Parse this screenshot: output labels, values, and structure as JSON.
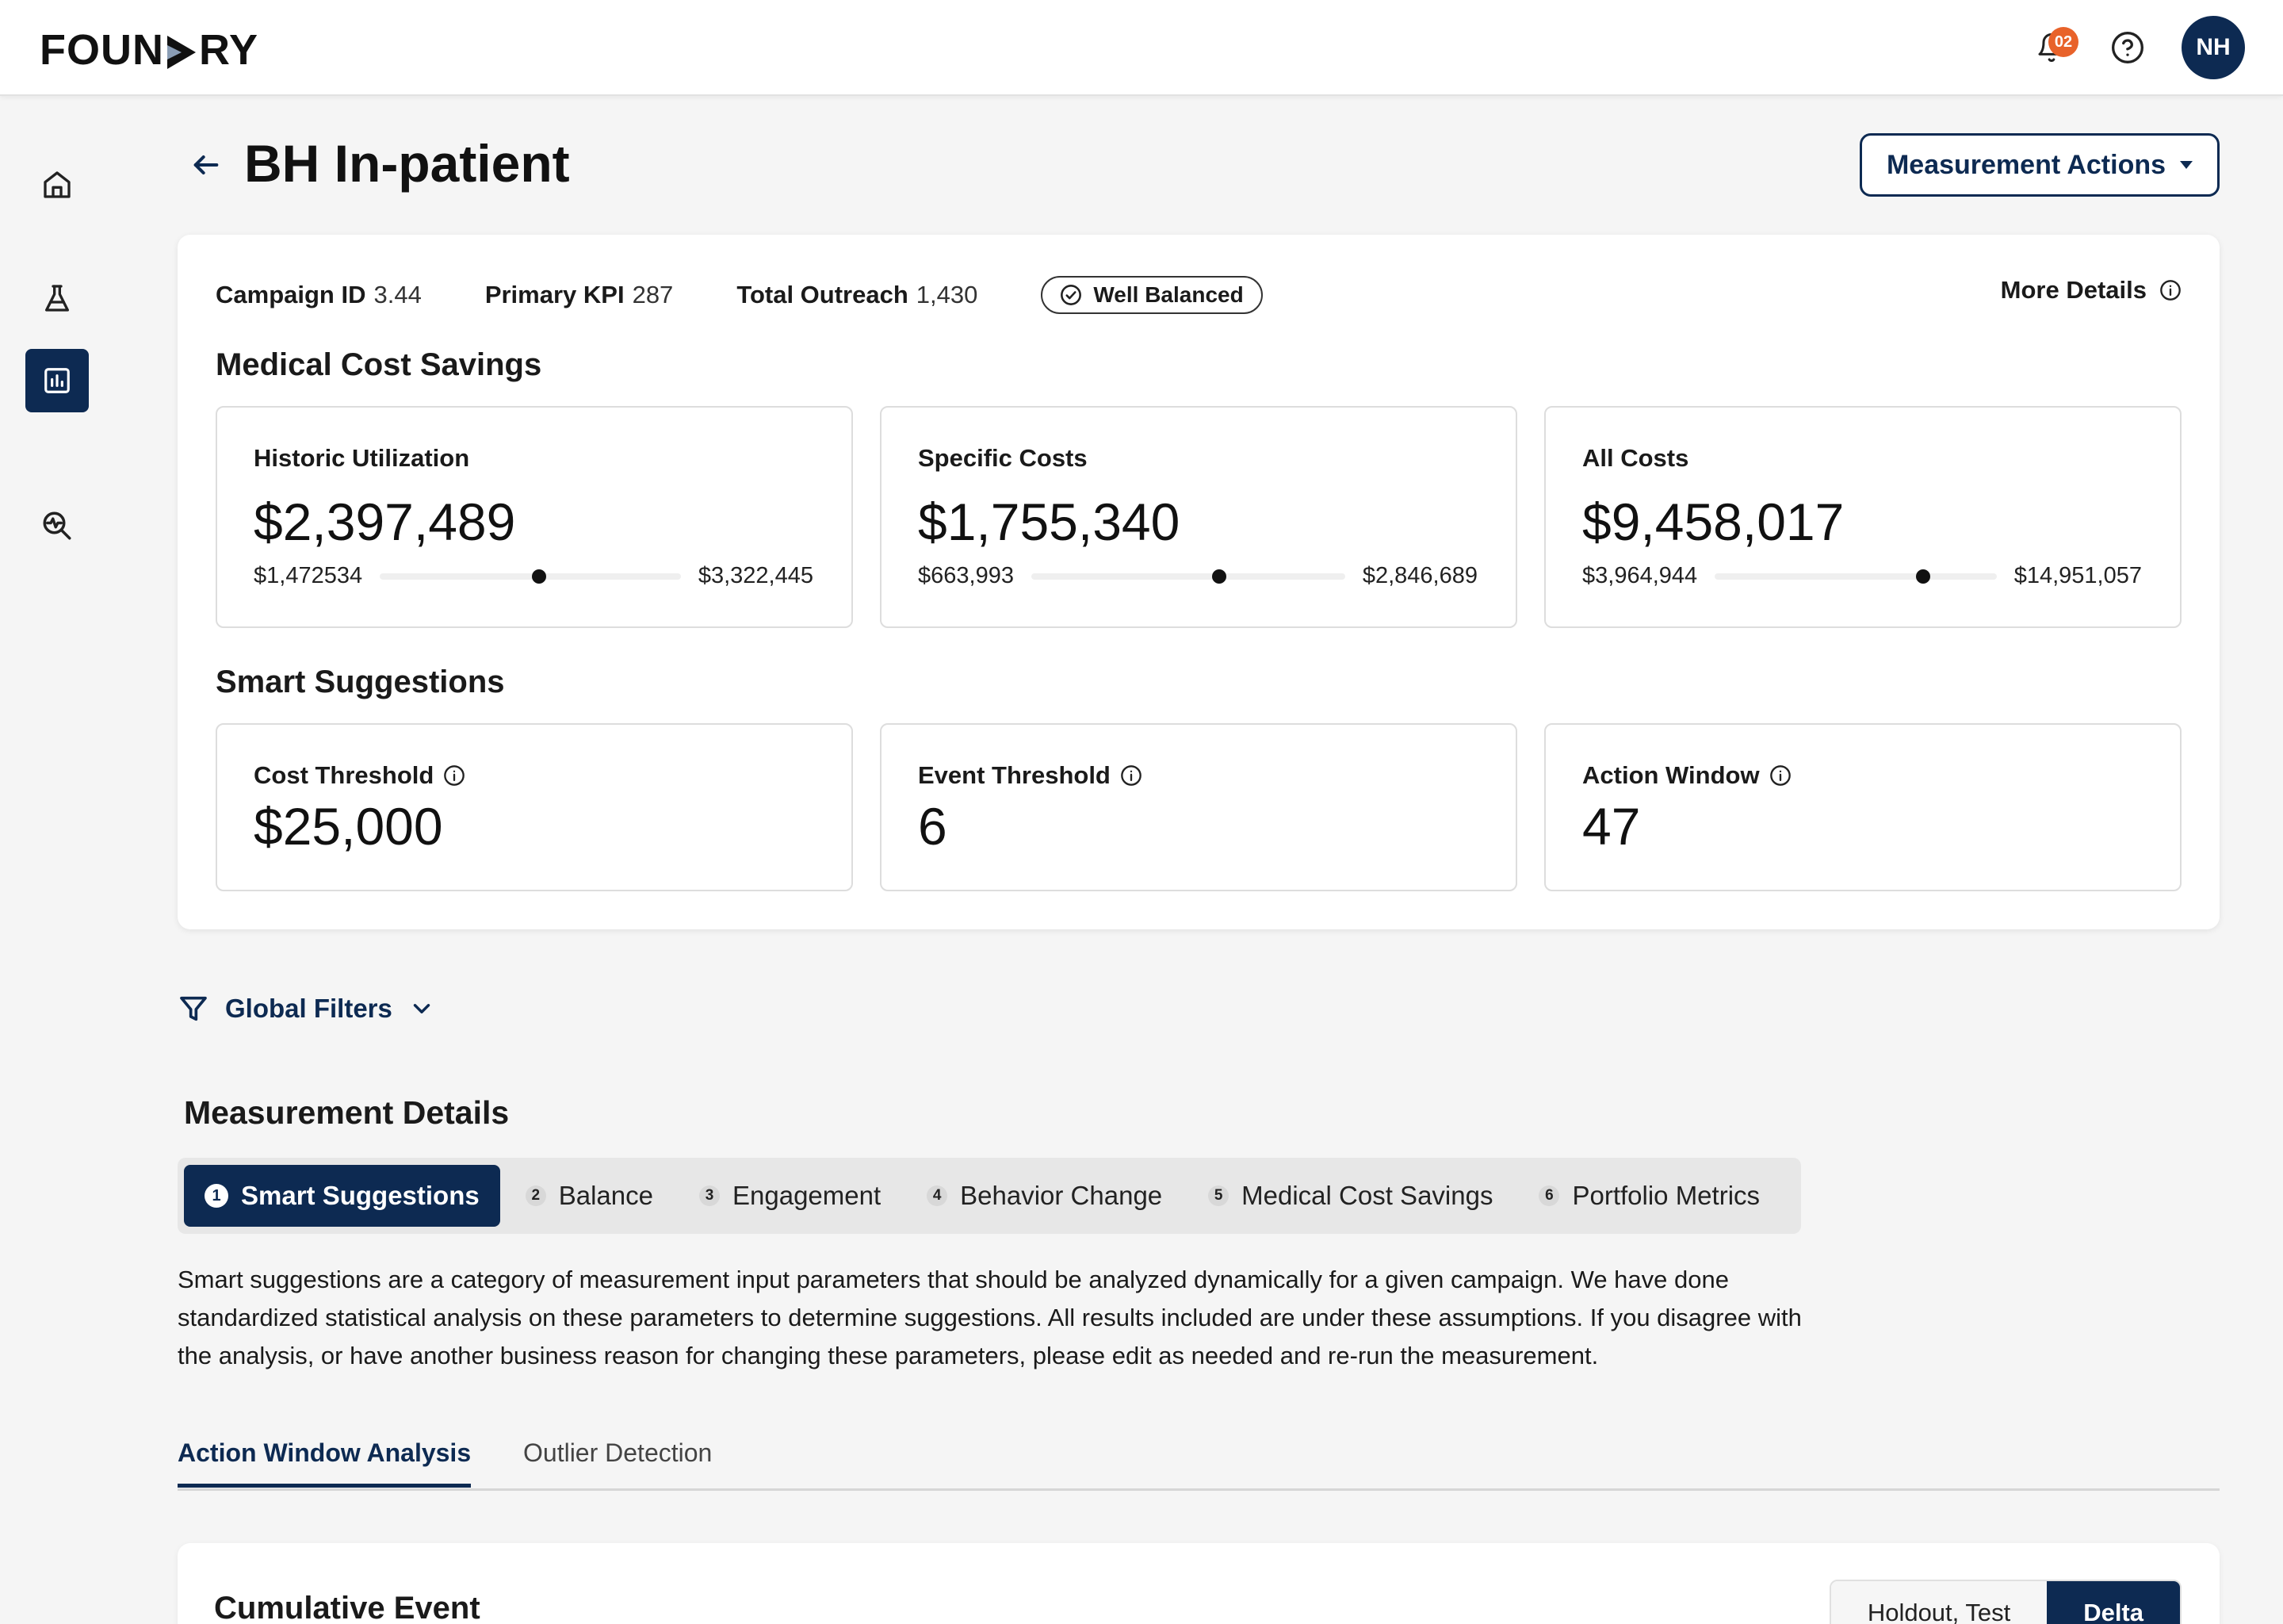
{
  "app": {
    "logo_left": "FOUN",
    "logo_right": "RY",
    "notification_count": "02",
    "avatar_initials": "NH"
  },
  "sidebar": {
    "items": [
      {
        "name": "home",
        "icon": "home-icon"
      },
      {
        "name": "experiments",
        "icon": "flask-icon"
      },
      {
        "name": "measurement",
        "icon": "chart-icon",
        "active": true
      },
      {
        "name": "analysis",
        "icon": "search-pulse-icon"
      }
    ]
  },
  "header": {
    "title": "BH In-patient",
    "actions_label": "Measurement Actions"
  },
  "summary": {
    "campaign_id_label": "Campaign ID",
    "campaign_id_value": "3.44",
    "primary_kpi_label": "Primary KPI",
    "primary_kpi_value": "287",
    "total_outreach_label": "Total Outreach",
    "total_outreach_value": "1,430",
    "status_label": "Well Balanced",
    "more_details_label": "More Details",
    "medical_cost_title": "Medical Cost Savings",
    "cost_cards": [
      {
        "label": "Historic Utilization",
        "value": "$2,397,489",
        "min": "$1,472534",
        "max": "$3,322,445",
        "position": 0.53
      },
      {
        "label": "Specific Costs",
        "value": "$1,755,340",
        "min": "$663,993",
        "max": "$2,846,689",
        "position": 0.6
      },
      {
        "label": "All Costs",
        "value": "$9,458,017",
        "min": "$3,964,944",
        "max": "$14,951,057",
        "position": 0.74
      }
    ],
    "smart_title": "Smart Suggestions",
    "smart_cards": [
      {
        "label": "Cost Threshold",
        "value": "$25,000"
      },
      {
        "label": "Event Threshold",
        "value": "6"
      },
      {
        "label": "Action Window",
        "value": "47"
      }
    ]
  },
  "filters": {
    "label": "Global Filters"
  },
  "measurement_details": {
    "title": "Measurement Details",
    "steps": [
      {
        "num": "1",
        "label": "Smart Suggestions",
        "active": true
      },
      {
        "num": "2",
        "label": "Balance"
      },
      {
        "num": "3",
        "label": "Engagement"
      },
      {
        "num": "4",
        "label": "Behavior Change"
      },
      {
        "num": "5",
        "label": "Medical Cost Savings"
      },
      {
        "num": "6",
        "label": "Portfolio Metrics"
      }
    ],
    "description": "Smart suggestions are a category of measurement input parameters that should be analyzed dynamically for a given campaign. We have done standardized statistical analysis on these parameters to determine suggestions. All results included are under these assumptions. If you disagree with the analysis, or have another business reason for changing these parameters, please edit as needed and re-run the measurement."
  },
  "tabs": [
    {
      "label": "Action Window Analysis",
      "active": true
    },
    {
      "label": "Outlier Detection"
    }
  ],
  "chart_card": {
    "title": "Cumulative Event",
    "toggle_off": "Holdout, Test",
    "toggle_on": "Delta"
  },
  "colors": {
    "primary": "#0d2a52",
    "badge": "#e8622a",
    "background": "#f5f5f5"
  }
}
